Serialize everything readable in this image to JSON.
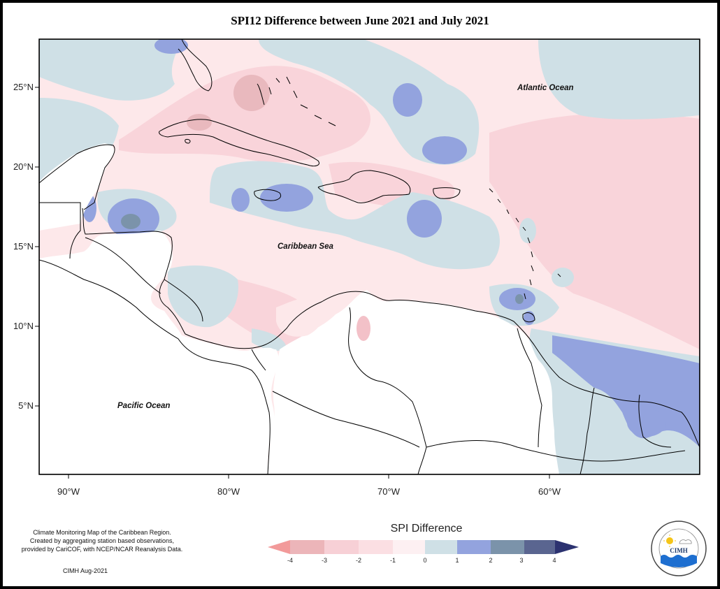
{
  "title": "SPI12 Difference between June 2021 and July 2021",
  "map": {
    "lat_labels": [
      "25°N",
      "20°N",
      "15°N",
      "10°N",
      "5°N"
    ],
    "lon_labels": [
      "90°W",
      "80°W",
      "70°W",
      "60°W"
    ],
    "ocean_labels": {
      "atlantic": "Atlantic Ocean",
      "caribbean": "Caribbean Sea",
      "pacific": "Pacific Ocean"
    }
  },
  "legend": {
    "title": "SPI Difference",
    "ticks": [
      "-4",
      "-3",
      "-2",
      "-1",
      "0",
      "1",
      "2",
      "3",
      "4"
    ],
    "colors": {
      "neg4": "#f29a9a",
      "neg3": "#ecb5b9",
      "neg2": "#f7d0d6",
      "neg1": "#fde8ea",
      "zero": "#cfe0e6",
      "pos1": "#93a3de",
      "pos2": "#7b93aa",
      "pos3": "#5a6590",
      "pos4": "#2c3270"
    }
  },
  "note": {
    "line1": "Climate Monitoring Map of the Caribbean Region.",
    "line2": "Created by aggregating station based observations,",
    "line3": "provided by CariCOF, with NCEP/NCAR Reanalysis Data.",
    "credit": "CIMH Aug-2021"
  },
  "logo": {
    "text": "CIMH",
    "icon": "cimh-logo-icon"
  }
}
